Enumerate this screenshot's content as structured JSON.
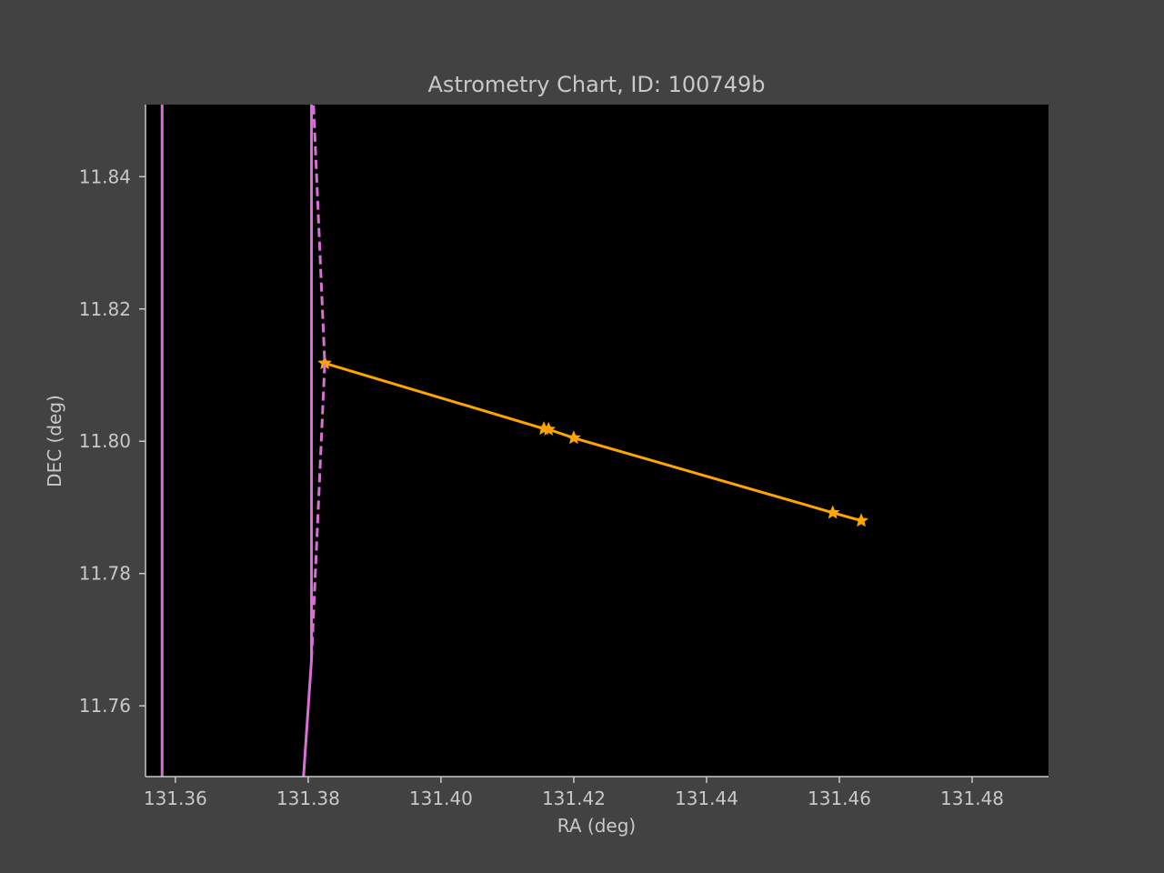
{
  "chart_data": {
    "type": "line",
    "title": "Astrometry Chart, ID: 100749b",
    "xlabel": "RA (deg)",
    "ylabel": "DEC (deg)",
    "xlim": [
      131.3555,
      131.4915
    ],
    "ylim": [
      11.7493,
      11.8509
    ],
    "grid": false,
    "xticks": [
      131.36,
      131.38,
      131.4,
      131.42,
      131.44,
      131.46,
      131.48
    ],
    "xtick_labels": [
      "131.36",
      "131.38",
      "131.40",
      "131.42",
      "131.44",
      "131.46",
      "131.48"
    ],
    "yticks": [
      11.76,
      11.78,
      11.8,
      11.82,
      11.84
    ],
    "ytick_labels": [
      "11.76",
      "11.78",
      "11.80",
      "11.82",
      "11.84"
    ],
    "series": [
      {
        "id": "track-main",
        "style": "line-star",
        "color": "#ffa500",
        "x": [
          131.3825,
          131.4155,
          131.4162,
          131.42,
          131.459,
          131.4633
        ],
        "y": [
          11.8118,
          11.8019,
          11.8018,
          11.8005,
          11.7892,
          11.788
        ]
      },
      {
        "id": "boundary-left",
        "style": "solid",
        "color": "#da70d6",
        "x": [
          131.358,
          131.358
        ],
        "y": [
          11.7493,
          11.8509
        ]
      },
      {
        "id": "boundary-mid-solid",
        "style": "solid",
        "color": "#da70d6",
        "x": [
          131.3793,
          131.3805,
          131.3805,
          131.3805
        ],
        "y": [
          11.7493,
          11.767,
          11.81,
          11.8509
        ]
      },
      {
        "id": "boundary-mid-dashed",
        "style": "dashed",
        "color": "#da70d6",
        "x": [
          131.3805,
          131.3825,
          131.3808
        ],
        "y": [
          11.767,
          11.8118,
          11.8509
        ]
      }
    ]
  }
}
